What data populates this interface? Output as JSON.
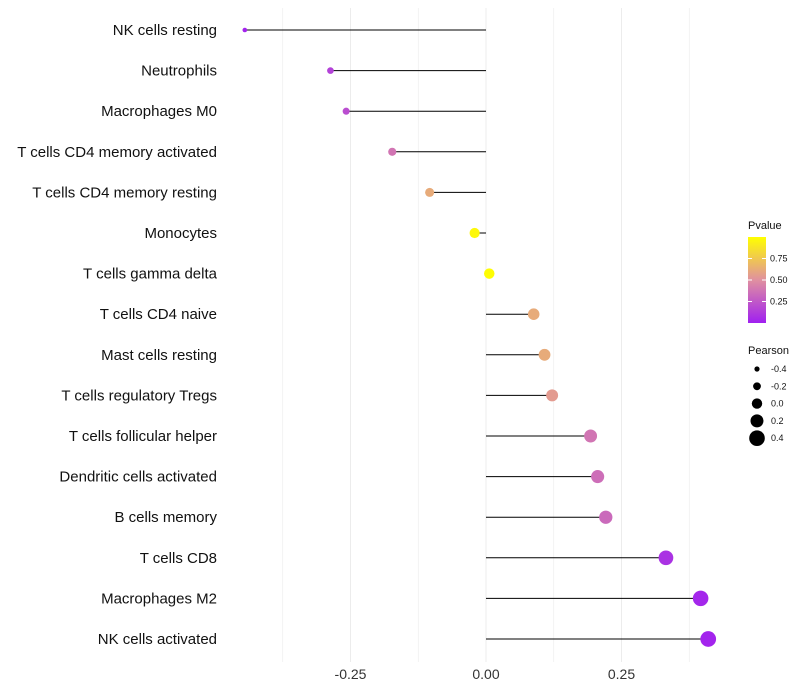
{
  "chart_data": {
    "type": "lollipop",
    "title": "",
    "xlabel": "",
    "ylabel": "",
    "xlim": [
      -0.375,
      0.42
    ],
    "grid": true,
    "x_ticks": [
      -0.25,
      0.0,
      0.25
    ],
    "x_tick_labels": [
      "-0.25",
      "0.00",
      "0.25"
    ],
    "categories": [
      "NK cells resting",
      "Neutrophils",
      "Macrophages M0",
      "T cells CD4 memory activated",
      "T cells CD4 memory resting",
      "Monocytes",
      "T cells gamma delta",
      "T cells CD4 naive",
      "Mast cells resting",
      "T cells regulatory  Tregs ",
      "T cells follicular helper",
      "Dendritic cells activated",
      "B cells memory",
      "T cells CD8",
      "Macrophages M2",
      "NK cells activated"
    ],
    "values": [
      -0.445,
      -0.287,
      -0.258,
      -0.173,
      -0.104,
      -0.021,
      0.006,
      0.088,
      0.108,
      0.122,
      0.193,
      0.206,
      0.221,
      0.332,
      0.396,
      0.41
    ],
    "pvalues": [
      0.02,
      0.15,
      0.2,
      0.38,
      0.62,
      0.97,
      0.99,
      0.62,
      0.62,
      0.55,
      0.38,
      0.35,
      0.33,
      0.08,
      0.03,
      0.02
    ],
    "legend_color": {
      "title": "Pvalue",
      "ticks": [
        0.25,
        0.5,
        0.75
      ],
      "tick_labels": [
        "0.25",
        "0.50",
        "0.75"
      ],
      "range": [
        0,
        1
      ],
      "colors": [
        "#a020f0",
        "#e090a0",
        "#ffff00"
      ],
      "placement": "right"
    },
    "legend_size": {
      "title": "Pearson",
      "values": [
        -0.4,
        -0.2,
        0.0,
        0.2,
        0.4
      ],
      "labels": [
        "-0.4",
        "-0.2",
        "0.0",
        "0.2",
        "0.4"
      ],
      "placement": "right"
    }
  }
}
